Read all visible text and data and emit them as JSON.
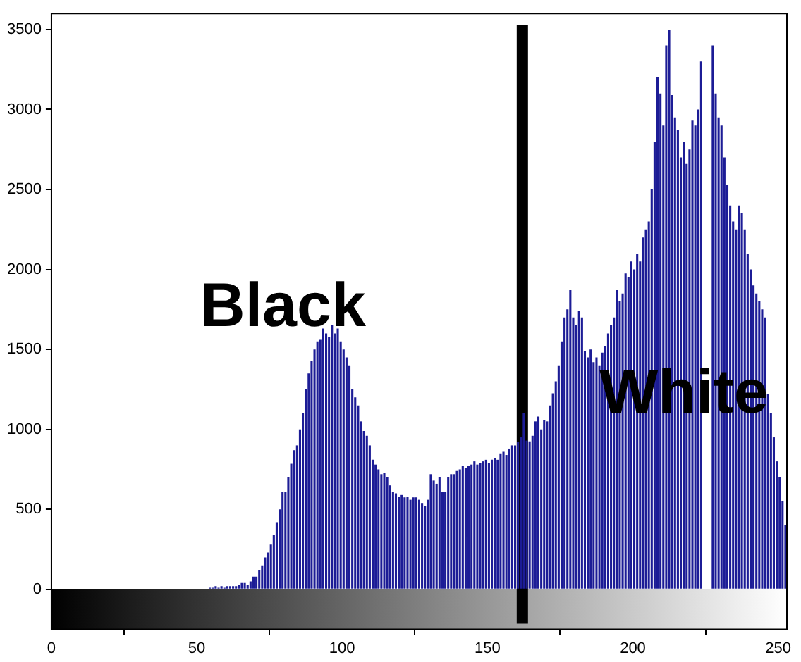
{
  "chart_data": {
    "type": "histogram",
    "bins": [
      54,
      55,
      56,
      57,
      58,
      59,
      60,
      61,
      62,
      63,
      64,
      65,
      66,
      67,
      68,
      69,
      70,
      71,
      72,
      73,
      74,
      75,
      76,
      77,
      78,
      79,
      80,
      81,
      82,
      83,
      84,
      85,
      86,
      87,
      88,
      89,
      90,
      91,
      92,
      93,
      94,
      95,
      96,
      97,
      98,
      99,
      100,
      101,
      102,
      103,
      104,
      105,
      106,
      107,
      108,
      109,
      110,
      111,
      112,
      113,
      114,
      115,
      116,
      117,
      118,
      119,
      120,
      121,
      122,
      123,
      124,
      125,
      126,
      127,
      128,
      129,
      130,
      131,
      132,
      133,
      134,
      135,
      136,
      137,
      138,
      139,
      140,
      141,
      142,
      143,
      144,
      145,
      146,
      147,
      148,
      149,
      150,
      151,
      152,
      153,
      154,
      155,
      156,
      157,
      158,
      159,
      160,
      161,
      162,
      163,
      164,
      165,
      166,
      167,
      168,
      169,
      170,
      171,
      172,
      173,
      174,
      175,
      176,
      177,
      178,
      179,
      180,
      181,
      182,
      183,
      184,
      185,
      186,
      187,
      188,
      189,
      190,
      191,
      192,
      193,
      194,
      195,
      196,
      197,
      198,
      199,
      200,
      201,
      202,
      203,
      204,
      205,
      206,
      207,
      208,
      209,
      210,
      211,
      212,
      213,
      214,
      215,
      216,
      217,
      218,
      219,
      220,
      221,
      222,
      223,
      224,
      225,
      226,
      227,
      228,
      229,
      230,
      231,
      232,
      233,
      234,
      235,
      236,
      237,
      238,
      239,
      240,
      241,
      242,
      243,
      244,
      245,
      246,
      247,
      248,
      249,
      250,
      251,
      252,
      253
    ],
    "values": [
      10,
      10,
      20,
      10,
      20,
      10,
      20,
      20,
      20,
      20,
      30,
      40,
      40,
      30,
      50,
      80,
      80,
      120,
      150,
      200,
      230,
      280,
      340,
      420,
      500,
      610,
      610,
      700,
      785,
      870,
      900,
      1000,
      1100,
      1250,
      1350,
      1430,
      1500,
      1550,
      1560,
      1630,
      1600,
      1580,
      1650,
      1600,
      1630,
      1550,
      1500,
      1450,
      1400,
      1250,
      1200,
      1150,
      1050,
      990,
      960,
      900,
      810,
      780,
      750,
      720,
      730,
      700,
      650,
      610,
      600,
      580,
      590,
      575,
      580,
      560,
      575,
      575,
      560,
      540,
      520,
      560,
      720,
      680,
      660,
      700,
      610,
      610,
      700,
      720,
      720,
      740,
      750,
      770,
      760,
      770,
      780,
      800,
      780,
      790,
      800,
      810,
      790,
      810,
      820,
      810,
      850,
      860,
      840,
      880,
      900,
      900,
      920,
      950,
      1100,
      930,
      925,
      960,
      1050,
      1080,
      1000,
      1060,
      1050,
      1150,
      1225,
      1300,
      1400,
      1550,
      1700,
      1750,
      1870,
      1700,
      1650,
      1740,
      1700,
      1490,
      1450,
      1500,
      1420,
      1450,
      1400,
      1480,
      1520,
      1600,
      1650,
      1700,
      1870,
      1800,
      1850,
      1975,
      1950,
      2050,
      2000,
      2100,
      2050,
      2200,
      2250,
      2300,
      2500,
      2800,
      3200,
      3100,
      2900,
      3400,
      3500,
      3090,
      2950,
      2870,
      2700,
      2800,
      2660,
      2750,
      2930,
      2900,
      3000,
      3300,
      null,
      null,
      null,
      3400,
      3100,
      2950,
      2900,
      2700,
      2530,
      2400,
      2300,
      2250,
      2400,
      2350,
      2250,
      2100,
      2000,
      1900,
      1850,
      1800,
      1750,
      1700,
      1220,
      1100,
      950,
      800,
      700,
      550,
      400
    ],
    "color": "#1c1c96",
    "xlim": [
      0,
      253
    ],
    "xticks": [
      0,
      50,
      100,
      150,
      200,
      250
    ],
    "ylim": [
      -250,
      3600
    ],
    "yticks": [
      0,
      500,
      1000,
      1500,
      2000,
      2500,
      3000,
      3500
    ],
    "ref_lines": [
      {
        "axis": "x",
        "value": 162,
        "color": "#000000"
      }
    ],
    "annotations": [
      "Black",
      "White"
    ],
    "grid": false,
    "legend": false
  }
}
